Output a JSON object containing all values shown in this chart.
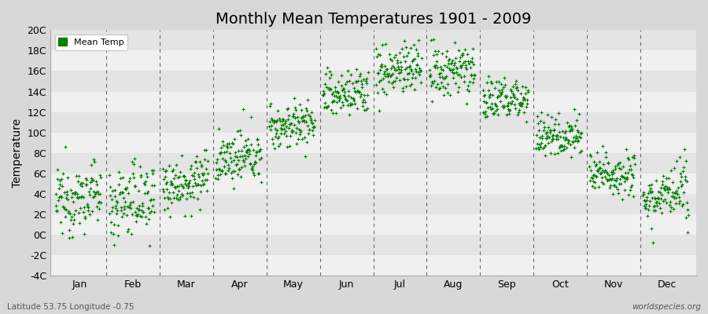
{
  "title": "Monthly Mean Temperatures 1901 - 2009",
  "ylabel": "Temperature",
  "bottom_left": "Latitude 53.75 Longitude -0.75",
  "bottom_right": "worldspecies.org",
  "legend_label": "Mean Temp",
  "dot_color": "#008000",
  "dot_size": 5,
  "title_fontsize": 14,
  "ylim": [
    -4,
    20
  ],
  "yticks": [
    -4,
    -2,
    0,
    2,
    4,
    6,
    8,
    10,
    12,
    14,
    16,
    18,
    20
  ],
  "ytick_labels": [
    "-4C",
    "-2C",
    "0C",
    "2C",
    "4C",
    "6C",
    "8C",
    "10C",
    "12C",
    "14C",
    "16C",
    "18C",
    "20C"
  ],
  "months": [
    "Jan",
    "Feb",
    "Mar",
    "Apr",
    "May",
    "Jun",
    "Jul",
    "Aug",
    "Sep",
    "Oct",
    "Nov",
    "Dec"
  ],
  "monthly_means": [
    3.2,
    3.0,
    4.8,
    7.2,
    10.5,
    13.5,
    15.8,
    15.6,
    13.0,
    9.5,
    5.8,
    3.5
  ],
  "monthly_stds": [
    1.6,
    1.8,
    1.3,
    1.2,
    1.1,
    1.2,
    1.3,
    1.3,
    1.1,
    1.0,
    1.1,
    1.3
  ],
  "monthly_trends": [
    0.008,
    0.007,
    0.007,
    0.006,
    0.005,
    0.006,
    0.007,
    0.007,
    0.005,
    0.004,
    0.004,
    0.006
  ],
  "n_years": 109,
  "start_year": 1901,
  "band_colors": [
    "#f0f0f0",
    "#e4e4e4"
  ]
}
